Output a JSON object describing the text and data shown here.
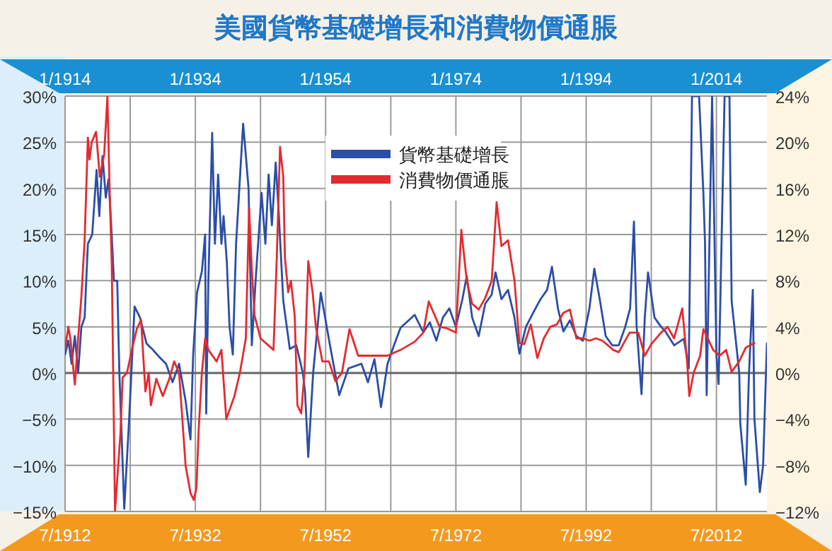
{
  "chart_data": {
    "type": "line",
    "title": "美國貨幣基礎增長和消費物價通脹",
    "xlim": [
      "1912-07",
      "2020-04"
    ],
    "xticks": [
      {
        "value": "1912-07",
        "label": "7/1912"
      },
      {
        "value": "1922-07",
        "label": null
      },
      {
        "value": "1932-07",
        "label": "7/1932"
      },
      {
        "value": "1942-07",
        "label": null
      },
      {
        "value": "1952-07",
        "label": "7/1952"
      },
      {
        "value": "1962-07",
        "label": null
      },
      {
        "value": "1972-07",
        "label": "7/1972"
      },
      {
        "value": "1982-07",
        "label": null
      },
      {
        "value": "1992-07",
        "label": "7/1992"
      },
      {
        "value": "2002-07",
        "label": null
      },
      {
        "value": "2012-07",
        "label": "7/2012"
      }
    ],
    "x2lim": [
      "1914-01",
      "2021-10"
    ],
    "x2ticks": [
      {
        "value": "1914-01",
        "label": "1/1914"
      },
      {
        "value": "1934-01",
        "label": "1/1934"
      },
      {
        "value": "1954-01",
        "label": "1/1954"
      },
      {
        "value": "1974-01",
        "label": "1/1974"
      },
      {
        "value": "1994-01",
        "label": "1/1994"
      },
      {
        "value": "2014-01",
        "label": "1/2014"
      }
    ],
    "ylim": [
      -15,
      30
    ],
    "yticks": [
      {
        "value": -15,
        "label": "−15%"
      },
      {
        "value": -10,
        "label": "−10%"
      },
      {
        "value": -5,
        "label": "−5%"
      },
      {
        "value": 0,
        "label": "0%"
      },
      {
        "value": 5,
        "label": "5%"
      },
      {
        "value": 10,
        "label": "10%"
      },
      {
        "value": 15,
        "label": "15%"
      },
      {
        "value": 20,
        "label": "20%"
      },
      {
        "value": 25,
        "label": "25%"
      },
      {
        "value": 30,
        "label": "30%"
      }
    ],
    "y2lim": [
      -12,
      24
    ],
    "y2ticks": [
      {
        "value": -12,
        "label": "−12%"
      },
      {
        "value": -8,
        "label": "−8%"
      },
      {
        "value": -4,
        "label": "−4%"
      },
      {
        "value": 0,
        "label": "0%"
      },
      {
        "value": 4,
        "label": "4%"
      },
      {
        "value": 8,
        "label": "8%"
      },
      {
        "value": 12,
        "label": "12%"
      },
      {
        "value": 16,
        "label": "16%"
      },
      {
        "value": 20,
        "label": "20%"
      },
      {
        "value": 24,
        "label": "24%"
      }
    ],
    "grid": true,
    "legend": "top",
    "ref_lines": [
      {
        "axis": "y",
        "value": 0,
        "label": null,
        "color": "#666666"
      }
    ],
    "series": [
      {
        "name": "貨幣基礎增長",
        "color": "#2b4ea6",
        "x": [
          "1912-07",
          "1913-01",
          "1913-07",
          "1914-01",
          "1914-07",
          "1915-01",
          "1915-07",
          "1916-01",
          "1916-09",
          "1917-05",
          "1917-10",
          "1918-04",
          "1918-10",
          "1919-03",
          "1919-08",
          "1920-01",
          "1920-07",
          "1920-11",
          "1921-08",
          "1922-05",
          "1923-03",
          "1924-01",
          "1925-01",
          "1926-01",
          "1927-01",
          "1928-01",
          "1929-01",
          "1930-01",
          "1931-01",
          "1931-10",
          "1932-03",
          "1932-10",
          "1933-07",
          "1934-01",
          "1934-03",
          "1934-07",
          "1935-02",
          "1935-07",
          "1936-01",
          "1936-07",
          "1936-11",
          "1937-05",
          "1937-10",
          "1938-04",
          "1938-10",
          "1939-11",
          "1940-02",
          "1940-09",
          "1941-03",
          "1941-10",
          "1942-09",
          "1943-04",
          "1943-10",
          "1944-04",
          "1944-11",
          "1945-04",
          "1946-01",
          "1947-01",
          "1948-01",
          "1949-01",
          "1949-05",
          "1949-11",
          "1950-08",
          "1951-10",
          "1953-03",
          "1954-08",
          "1956-01",
          "1958-01",
          "1959-01",
          "1960-01",
          "1961-01",
          "1962-01",
          "1963-01",
          "1964-01",
          "1966-03",
          "1967-07",
          "1968-07",
          "1969-07",
          "1970-07",
          "1971-07",
          "1972-07",
          "1973-07",
          "1974-03",
          "1975-01",
          "1976-01",
          "1977-01",
          "1978-01",
          "1978-08",
          "1979-07",
          "1980-07",
          "1981-07",
          "1982-04",
          "1983-04",
          "1984-07",
          "1985-07",
          "1986-07",
          "1987-04",
          "1988-03",
          "1989-01",
          "1990-01",
          "1991-01",
          "1992-01",
          "1993-01",
          "1993-10",
          "1994-08",
          "1995-07",
          "1996-07",
          "1997-07",
          "1998-07",
          "1999-04",
          "1999-11",
          "2000-04",
          "2001-01",
          "2001-07",
          "2002-01",
          "2003-01",
          "2004-01",
          "2004-09",
          "2006-01",
          "2007-07",
          "2008-04",
          "2008-10",
          "2009-11",
          "2010-07",
          "2010-10",
          "2011-01",
          "2011-11",
          "2012-07",
          "2012-11",
          "2013-10",
          "2014-07",
          "2014-11",
          "2016-01",
          "2016-03",
          "2017-01",
          "2017-07",
          "2018-02",
          "2018-05",
          "2019-03",
          "2019-09",
          "2020-04"
        ],
        "values": [
          2,
          3.5,
          1,
          4,
          0,
          5,
          6,
          14,
          15,
          22,
          17,
          23.5,
          19,
          21,
          16,
          10,
          10,
          0,
          -14.7,
          -5,
          7.2,
          6,
          3.2,
          2.5,
          1.7,
          1,
          -1,
          1,
          -3,
          -7.2,
          2,
          8.7,
          11,
          15,
          -4.4,
          10,
          26,
          14,
          21.5,
          14,
          17,
          12,
          5,
          2,
          14,
          27,
          25,
          20,
          3,
          10,
          19.5,
          14,
          21.5,
          16,
          22.8,
          18,
          7.8,
          2.6,
          3,
          0,
          -2,
          -9.1,
          0,
          8.7,
          3,
          -2.4,
          0.5,
          1,
          -1,
          1.5,
          -3.7,
          1,
          3,
          4.9,
          6.3,
          4.4,
          5.5,
          3.5,
          6,
          7,
          5,
          8,
          10.5,
          6,
          4,
          7.5,
          8.5,
          10.9,
          8,
          9,
          6,
          2.1,
          5,
          6.7,
          8,
          9,
          11.5,
          7,
          4.5,
          5.7,
          4,
          3.5,
          7,
          11.3,
          8,
          4,
          3,
          3,
          5,
          7,
          16.4,
          5,
          -2.3,
          6,
          10.9,
          6,
          5,
          4.5,
          3,
          3.7,
          0.5,
          30,
          30,
          19.4,
          14,
          -2.4,
          30,
          2,
          -1.2,
          30,
          30,
          7.8,
          0,
          -5.5,
          -12.1,
          0,
          9,
          -5,
          -12.9,
          -10,
          3.2
        ]
      },
      {
        "name": "消費物價通脹",
        "color": "#e32b2f",
        "axis": "y2",
        "x": [
          "1912-07",
          "1913-01",
          "1913-05",
          "1914-01",
          "1914-07",
          "1915-01",
          "1915-07",
          "1916-01",
          "1916-04",
          "1916-08",
          "1917-04",
          "1917-11",
          "1918-07",
          "1919-01",
          "1919-05",
          "1919-09",
          "1920-03",
          "1921-01",
          "1921-05",
          "1922-01",
          "1922-10",
          "1923-07",
          "1924-03",
          "1924-11",
          "1925-05",
          "1925-09",
          "1926-07",
          "1927-07",
          "1928-07",
          "1929-04",
          "1930-01",
          "1930-07",
          "1931-01",
          "1931-10",
          "1932-04",
          "1932-09",
          "1933-01",
          "1933-07",
          "1934-01",
          "1934-07",
          "1935-10",
          "1936-07",
          "1937-04",
          "1938-07",
          "1939-05",
          "1940-04",
          "1940-10",
          "1941-03",
          "1941-08",
          "1942-07",
          "1943-07",
          "1944-07",
          "1945-01",
          "1945-07",
          "1946-01",
          "1946-04",
          "1946-10",
          "1947-03",
          "1947-10",
          "1948-03",
          "1948-10",
          "1949-04",
          "1949-11",
          "1950-07",
          "1951-01",
          "1952-01",
          "1953-01",
          "1954-01",
          "1955-01",
          "1956-03",
          "1957-07",
          "1959-01",
          "1960-01",
          "1962-01",
          "1964-01",
          "1966-03",
          "1967-07",
          "1968-05",
          "1970-01",
          "1971-01",
          "1972-07",
          "1973-05",
          "1974-03",
          "1975-01",
          "1976-01",
          "1977-01",
          "1978-01",
          "1978-10",
          "1979-07",
          "1980-07",
          "1981-07",
          "1982-04",
          "1983-01",
          "1984-01",
          "1985-01",
          "1986-01",
          "1987-01",
          "1988-01",
          "1989-01",
          "1990-01",
          "1991-01",
          "1992-01",
          "1993-01",
          "1994-01",
          "1995-01",
          "1996-09",
          "1997-07",
          "1999-03",
          "2000-07",
          "2001-07",
          "2002-07",
          "2004-01",
          "2005-01",
          "2006-01",
          "2007-04",
          "2008-01",
          "2008-05",
          "2009-01",
          "2010-01",
          "2010-07",
          "2012-01",
          "2013-01",
          "2014-01",
          "2014-11",
          "2016-01",
          "2017-01",
          "2018-05"
        ],
        "values": [
          2.1,
          4,
          2.9,
          -1,
          3,
          6.6,
          11.5,
          20.4,
          18.5,
          20,
          20.9,
          17,
          18.9,
          24,
          16,
          9.4,
          -12,
          -5.2,
          -0.4,
          0,
          2,
          3.8,
          4.6,
          -1.6,
          0,
          -2.8,
          -0.5,
          -2,
          -0.5,
          1,
          0,
          -4,
          -8,
          -10.4,
          -11,
          -10,
          -5,
          0,
          3,
          2,
          1,
          2,
          -4,
          -2,
          0,
          3,
          14.3,
          9,
          5,
          3,
          2.5,
          2,
          10,
          19.6,
          17,
          10,
          7,
          8,
          5,
          -2.8,
          -3.5,
          0,
          9.7,
          7,
          4,
          1,
          1,
          -0.7,
          0,
          3.8,
          1.5,
          1.5,
          1.5,
          1.5,
          2,
          2.7,
          3.5,
          6.2,
          4,
          3.9,
          3.5,
          12.4,
          8,
          6,
          5.5,
          6.5,
          8,
          14.8,
          11,
          11.5,
          8,
          2.6,
          2.5,
          4.2,
          1.3,
          3,
          4,
          4.2,
          5.2,
          5.5,
          3,
          3,
          2.8,
          3,
          2.8,
          2,
          1.8,
          3.5,
          3.5,
          1.5,
          2.5,
          3.5,
          4,
          3,
          5.6,
          1,
          -2,
          0,
          1.5,
          3.8,
          2,
          1.5,
          2,
          0.1,
          1,
          2.2,
          2.6
        ]
      }
    ]
  }
}
